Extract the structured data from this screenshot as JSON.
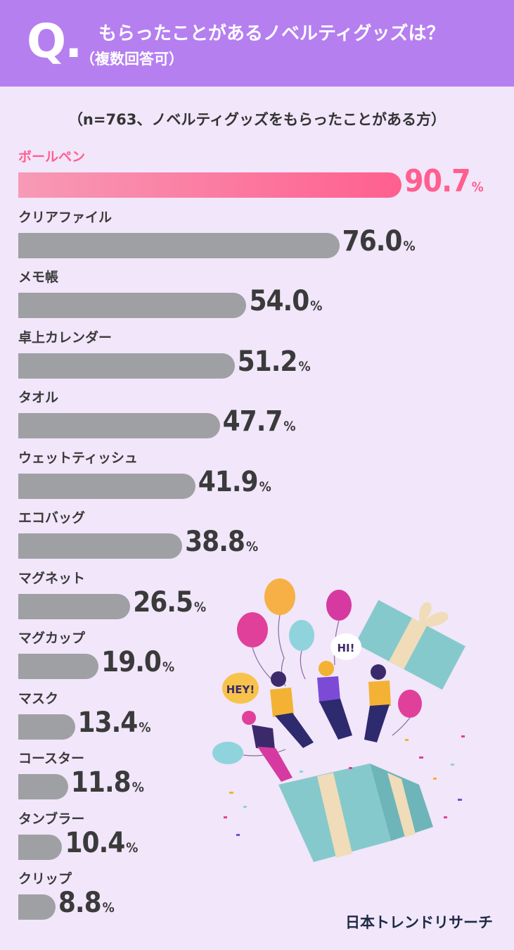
{
  "header": {
    "q_mark": "Q.",
    "question": "もらったことがあるノベルティグッズは？",
    "note": "（複数回答可）"
  },
  "sample_note": "（n=763、ノベルティグッズをもらったことがある方）",
  "chart_data": {
    "type": "bar",
    "orientation": "horizontal",
    "categories": [
      "ボールペン",
      "クリアファイル",
      "メモ帳",
      "卓上カレンダー",
      "タオル",
      "ウェットティッシュ",
      "エコバッグ",
      "マグネット",
      "マグカップ",
      "マスク",
      "コースター",
      "タンブラー",
      "クリップ"
    ],
    "values": [
      90.7,
      76.0,
      54.0,
      51.2,
      47.7,
      41.9,
      38.8,
      26.5,
      19.0,
      13.4,
      11.8,
      10.4,
      8.8
    ],
    "value_labels": [
      "90.7",
      "76.0",
      "54.0",
      "51.2",
      "47.7",
      "41.9",
      "38.8",
      "26.5",
      "19.0",
      "13.4",
      "11.8",
      "10.4",
      "8.8"
    ],
    "unit": "%",
    "highlight_index": 0,
    "colors": {
      "highlight_start": "#f79ab6",
      "highlight_end": "#ff5f8f",
      "highlight_text": "#ff5f8f",
      "bar": "#9fa0a4",
      "text": "#3a3a3a"
    }
  },
  "illustration": {
    "speech_bubble_1": "HEY!",
    "speech_bubble_2": "HI!"
  },
  "brand": "日本トレンドリサーチ"
}
